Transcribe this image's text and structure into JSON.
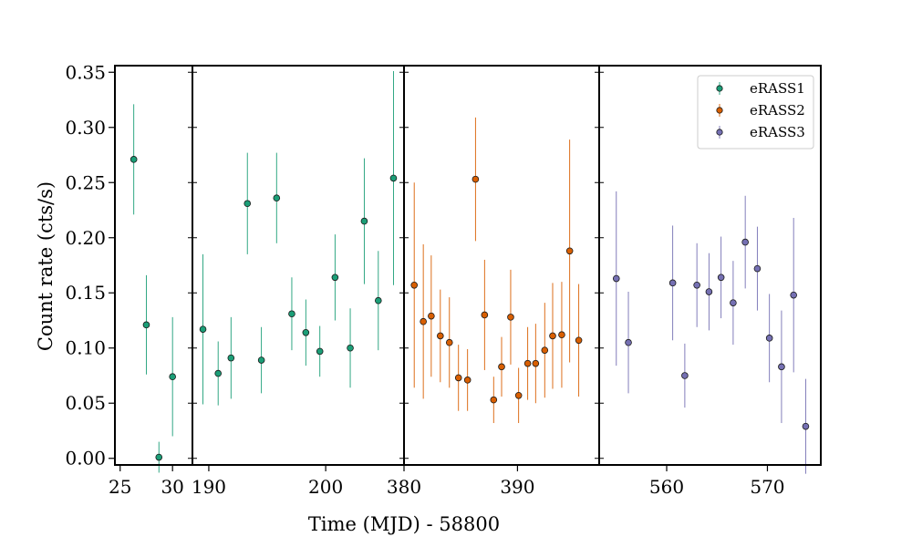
{
  "chart_data": {
    "type": "scatter",
    "xlabel": "Time (MJD) - 58800",
    "ylabel": "Count rate (cts/s)",
    "ylim": [
      -0.006,
      0.356
    ],
    "yticks": [
      0.0,
      0.05,
      0.1,
      0.15,
      0.2,
      0.25,
      0.3,
      0.35
    ],
    "yticklabels": [
      "0.00",
      "0.05",
      "0.10",
      "0.15",
      "0.20",
      "0.25",
      "0.30",
      "0.35"
    ],
    "legend_position": "top-right",
    "panels": [
      {
        "xlim": [
          24.5,
          31.9
        ],
        "xticks": [
          25,
          30
        ],
        "xticklabels": [
          "25",
          "30"
        ],
        "series": 0
      },
      {
        "xlim": [
          188.6,
          206.7
        ],
        "xticks": [
          190,
          200
        ],
        "xticklabels": [
          "190",
          "200"
        ],
        "series": 0
      },
      {
        "xlim": [
          380,
          397.2
        ],
        "xticks": [
          380,
          390
        ],
        "xticklabels": [
          "380",
          "390"
        ],
        "series": 1
      },
      {
        "xlim": [
          553.3,
          575.3
        ],
        "xticks": [
          560,
          570
        ],
        "xticklabels": [
          "560",
          "570"
        ],
        "series": 2
      }
    ],
    "series": [
      {
        "name": "eRASS1",
        "color": "#1b9e77",
        "points": [
          {
            "x": 26.3,
            "y": 0.271,
            "err": 0.05
          },
          {
            "x": 27.5,
            "y": 0.121,
            "err": 0.045
          },
          {
            "x": 28.7,
            "y": 0.001,
            "err": 0.014
          },
          {
            "x": 30.0,
            "y": 0.074,
            "err": 0.054
          },
          {
            "x": 189.5,
            "y": 0.117,
            "err": 0.068
          },
          {
            "x": 190.8,
            "y": 0.077,
            "err": 0.029
          },
          {
            "x": 191.9,
            "y": 0.091,
            "err": 0.037
          },
          {
            "x": 193.3,
            "y": 0.231,
            "err": 0.046
          },
          {
            "x": 194.5,
            "y": 0.089,
            "err": 0.03
          },
          {
            "x": 195.8,
            "y": 0.236,
            "err": 0.041
          },
          {
            "x": 197.1,
            "y": 0.131,
            "err": 0.033
          },
          {
            "x": 198.3,
            "y": 0.114,
            "err": 0.03
          },
          {
            "x": 199.5,
            "y": 0.097,
            "err": 0.023
          },
          {
            "x": 200.8,
            "y": 0.164,
            "err": 0.039
          },
          {
            "x": 202.1,
            "y": 0.1,
            "err": 0.036
          },
          {
            "x": 203.3,
            "y": 0.215,
            "err": 0.057
          },
          {
            "x": 204.5,
            "y": 0.143,
            "err": 0.045
          },
          {
            "x": 205.8,
            "y": 0.254,
            "err": 0.097
          }
        ]
      },
      {
        "name": "eRASS2",
        "color": "#d95f02",
        "points": [
          {
            "x": 380.9,
            "y": 0.157,
            "err": 0.093
          },
          {
            "x": 381.7,
            "y": 0.124,
            "err": 0.07
          },
          {
            "x": 382.4,
            "y": 0.129,
            "err": 0.055
          },
          {
            "x": 383.2,
            "y": 0.111,
            "err": 0.042
          },
          {
            "x": 384.0,
            "y": 0.105,
            "err": 0.041
          },
          {
            "x": 384.8,
            "y": 0.073,
            "err": 0.03
          },
          {
            "x": 385.6,
            "y": 0.071,
            "err": 0.028
          },
          {
            "x": 386.3,
            "y": 0.253,
            "err": 0.056
          },
          {
            "x": 387.1,
            "y": 0.13,
            "err": 0.05
          },
          {
            "x": 387.9,
            "y": 0.053,
            "err": 0.021
          },
          {
            "x": 388.6,
            "y": 0.083,
            "err": 0.027
          },
          {
            "x": 389.4,
            "y": 0.128,
            "err": 0.043
          },
          {
            "x": 390.1,
            "y": 0.057,
            "err": 0.025
          },
          {
            "x": 390.9,
            "y": 0.086,
            "err": 0.033
          },
          {
            "x": 391.6,
            "y": 0.086,
            "err": 0.036
          },
          {
            "x": 392.4,
            "y": 0.098,
            "err": 0.043
          },
          {
            "x": 393.1,
            "y": 0.111,
            "err": 0.048
          },
          {
            "x": 393.9,
            "y": 0.112,
            "err": 0.048
          },
          {
            "x": 394.6,
            "y": 0.188,
            "err": 0.101
          },
          {
            "x": 395.4,
            "y": 0.107,
            "err": 0.051
          }
        ]
      },
      {
        "name": "eRASS3",
        "color": "#7570b3",
        "points": [
          {
            "x": 555.0,
            "y": 0.163,
            "err": 0.079
          },
          {
            "x": 556.2,
            "y": 0.105,
            "err": 0.046
          },
          {
            "x": 560.6,
            "y": 0.159,
            "err": 0.052
          },
          {
            "x": 561.8,
            "y": 0.075,
            "err": 0.029
          },
          {
            "x": 563.0,
            "y": 0.157,
            "err": 0.038
          },
          {
            "x": 564.2,
            "y": 0.151,
            "err": 0.035
          },
          {
            "x": 565.4,
            "y": 0.164,
            "err": 0.037
          },
          {
            "x": 566.6,
            "y": 0.141,
            "err": 0.038
          },
          {
            "x": 567.8,
            "y": 0.196,
            "err": 0.042
          },
          {
            "x": 569.0,
            "y": 0.172,
            "err": 0.038
          },
          {
            "x": 570.2,
            "y": 0.109,
            "err": 0.04
          },
          {
            "x": 571.4,
            "y": 0.083,
            "err": 0.051
          },
          {
            "x": 572.6,
            "y": 0.148,
            "err": 0.07
          },
          {
            "x": 573.8,
            "y": 0.029,
            "err": 0.043
          }
        ]
      }
    ]
  }
}
